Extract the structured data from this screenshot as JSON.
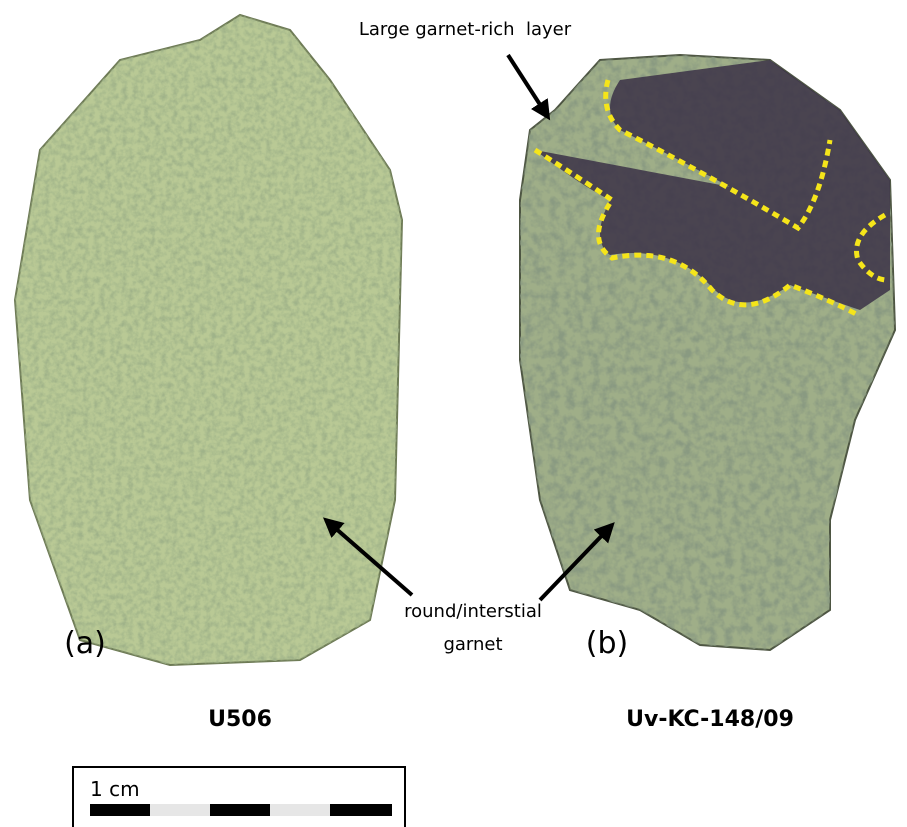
{
  "annotations": {
    "top": "Large garnet-rich  layer",
    "bottom": [
      "round/interstial",
      "garnet"
    ]
  },
  "panels": [
    {
      "label": "(a)",
      "sample": "U506"
    },
    {
      "label": "(b)",
      "sample": "Uv-KC-148/09"
    }
  ],
  "scale_bar": {
    "label": "1 cm"
  }
}
